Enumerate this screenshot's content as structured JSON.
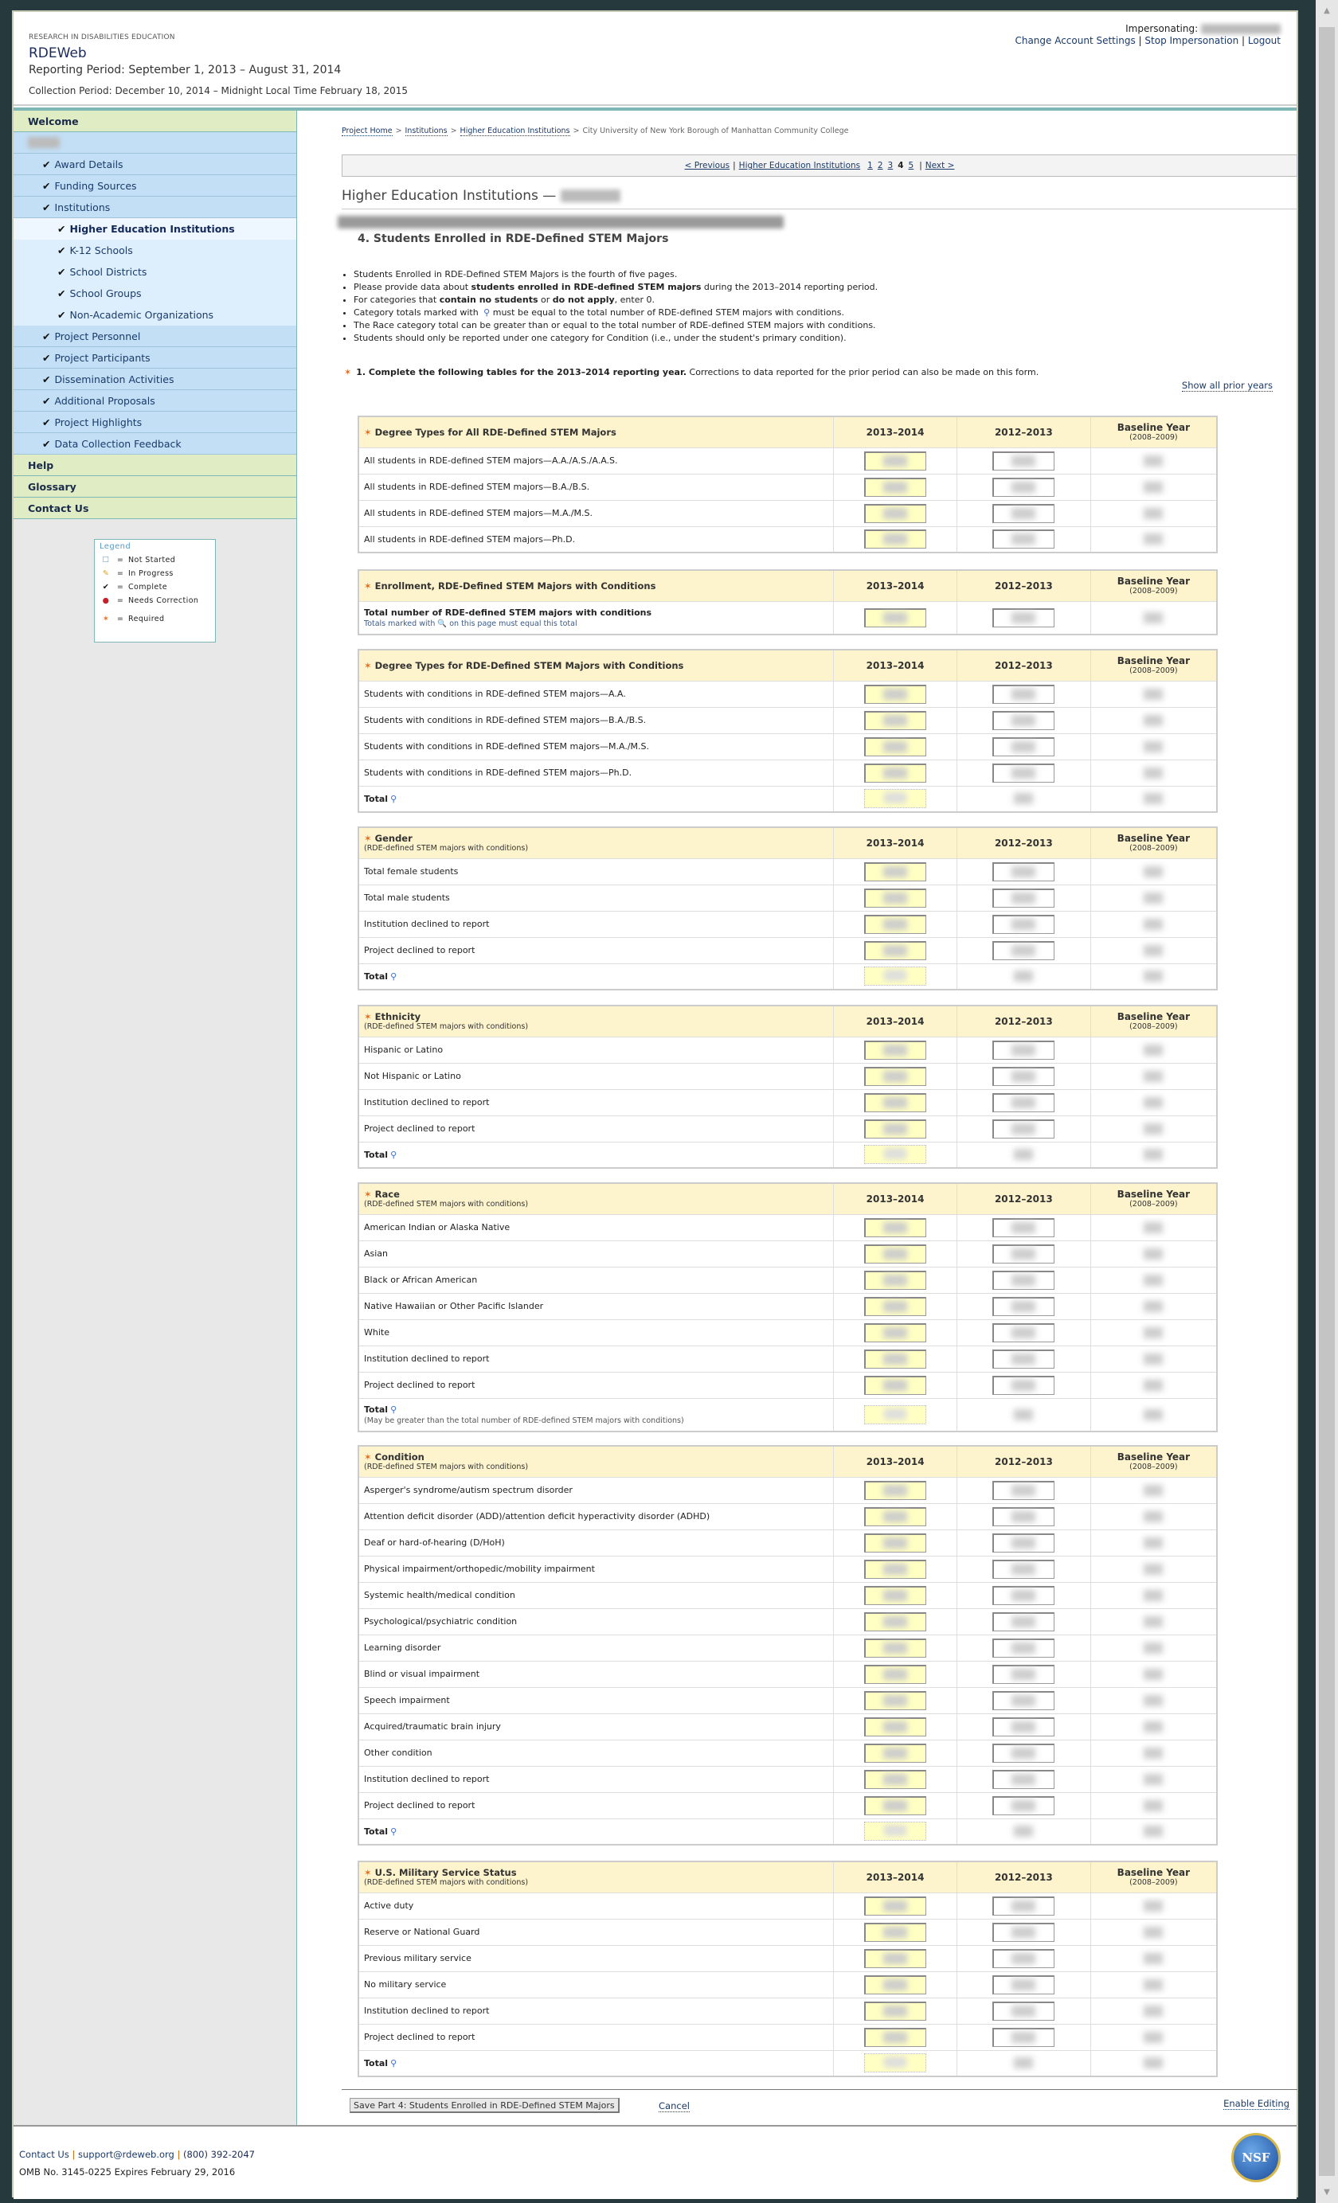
{
  "header": {
    "org": "RESEARCH IN DISABILITIES EDUCATION",
    "app_title": "RDEWeb",
    "reporting_period": "Reporting Period: September 1, 2013 – August 31, 2014",
    "collection_period": "Collection Period: December 10, 2014 – Midnight Local Time February 18, 2015",
    "impersonating_label": "Impersonating:",
    "links": {
      "account": "Change Account Settings",
      "stop": "Stop Impersonation",
      "logout": "Logout",
      "sep": "|"
    }
  },
  "sidebar": {
    "welcome": "Welcome",
    "items": [
      {
        "label": "Award Details",
        "level": 1
      },
      {
        "label": "Funding Sources",
        "level": 1
      },
      {
        "label": "Institutions",
        "level": 1
      },
      {
        "label": "Higher Education Institutions",
        "level": 2,
        "current": true
      },
      {
        "label": "K-12 Schools",
        "level": 2
      },
      {
        "label": "School Districts",
        "level": 2
      },
      {
        "label": "School Groups",
        "level": 2
      },
      {
        "label": "Non-Academic Organizations",
        "level": 2
      },
      {
        "label": "Project Personnel",
        "level": 1
      },
      {
        "label": "Project Participants",
        "level": 1
      },
      {
        "label": "Dissemination Activities",
        "level": 1
      },
      {
        "label": "Additional Proposals",
        "level": 1
      },
      {
        "label": "Project Highlights",
        "level": 1
      },
      {
        "label": "Data Collection Feedback",
        "level": 1
      }
    ],
    "bottom": [
      "Help",
      "Glossary",
      "Contact Us"
    ],
    "legend": {
      "title": "Legend",
      "eq": "=",
      "items": [
        {
          "icon": "not-started-icon",
          "label": "Not Started"
        },
        {
          "icon": "pencil-icon",
          "label": "In Progress"
        },
        {
          "icon": "checkmark-icon",
          "label": "Complete"
        },
        {
          "icon": "error-icon",
          "label": "Needs Correction"
        },
        {
          "icon": "required-star-icon",
          "label": "Required"
        }
      ]
    }
  },
  "breadcrumb": {
    "items": [
      "Project Home",
      "Institutions",
      "Higher Education Institutions"
    ],
    "current": "City University of New York Borough of Manhattan Community College",
    "sep": ">"
  },
  "pager": {
    "prev": "< Previous",
    "section": "Higher Education Institutions",
    "pages": [
      "1",
      "2",
      "3",
      "4",
      "5"
    ],
    "current_page": "4",
    "next": "Next >",
    "sep": "|"
  },
  "page": {
    "title": "Higher Education Institutions —",
    "section_title": "4. Students Enrolled in RDE-Defined STEM Majors",
    "bullets": [
      [
        "Students Enrolled in RDE-Defined STEM Majors is the fourth of five pages."
      ],
      [
        "Please provide data about ",
        "students enrolled in RDE-defined STEM majors",
        " during the 2013–2014 reporting period."
      ],
      [
        "For categories that ",
        "contain no students",
        " or ",
        "do not apply",
        ", enter 0."
      ],
      [
        "Category totals marked with ",
        "🔍",
        " must be equal to the total number of RDE-defined STEM majors with conditions."
      ],
      [
        "The Race category total can be greater than or equal to the total number of RDE-defined STEM majors with conditions."
      ],
      [
        "Students should only be reported under one category for Condition (i.e., under the student's primary condition)."
      ]
    ],
    "question_bold": "1. Complete the following tables for the 2013–2014 reporting year.",
    "question_rest": " Corrections to data reported for the prior period can also be made on this form.",
    "show_all": "Show all prior years"
  },
  "columns": {
    "y1": "2013–2014",
    "y2": "2012–2013",
    "base": "Baseline Year",
    "base_sub": "(2008–2009)"
  },
  "tables": [
    {
      "title": "Degree Types for All RDE-Defined STEM Majors",
      "rows": [
        {
          "label": "All students in RDE-defined STEM majors—A.A./A.S./A.A.S."
        },
        {
          "label": "All students in RDE-defined STEM majors—B.A./B.S."
        },
        {
          "label": "All students in RDE-defined STEM majors—M.A./M.S."
        },
        {
          "label": "All students in RDE-defined STEM majors—Ph.D."
        }
      ]
    },
    {
      "title": "Enrollment, RDE-Defined STEM Majors with Conditions",
      "rows": [
        {
          "label": "Total number of RDE-defined STEM majors with conditions",
          "bold": true,
          "note2": "Totals marked with 🔍 on this page must equal this total"
        }
      ]
    },
    {
      "title": "Degree Types for RDE-Defined STEM Majors with Conditions",
      "rows": [
        {
          "label": "Students with conditions in RDE-defined STEM majors—A.A."
        },
        {
          "label": "Students with conditions in RDE-defined STEM majors—B.A./B.S."
        },
        {
          "label": "Students with conditions in RDE-defined STEM majors—M.A./M.S."
        },
        {
          "label": "Students with conditions in RDE-defined STEM majors—Ph.D."
        },
        {
          "label": "Total",
          "total": true
        }
      ]
    },
    {
      "title": "Gender",
      "subtitle": "(RDE-defined STEM majors with conditions)",
      "rows": [
        {
          "label": "Total female students"
        },
        {
          "label": "Total male students"
        },
        {
          "label": "Institution declined to report"
        },
        {
          "label": "Project declined to report"
        },
        {
          "label": "Total",
          "total": true
        }
      ]
    },
    {
      "title": "Ethnicity",
      "subtitle": "(RDE-defined STEM majors with conditions)",
      "rows": [
        {
          "label": "Hispanic or Latino"
        },
        {
          "label": "Not Hispanic or Latino"
        },
        {
          "label": "Institution declined to report"
        },
        {
          "label": "Project declined to report"
        },
        {
          "label": "Total",
          "total": true
        }
      ]
    },
    {
      "title": "Race",
      "subtitle": "(RDE-defined STEM majors with conditions)",
      "rows": [
        {
          "label": "American Indian or Alaska Native"
        },
        {
          "label": "Asian"
        },
        {
          "label": "Black or African American"
        },
        {
          "label": "Native Hawaiian or Other Pacific Islander"
        },
        {
          "label": "White"
        },
        {
          "label": "Institution declined to report"
        },
        {
          "label": "Project declined to report"
        },
        {
          "label": "Total",
          "total": true,
          "note": "(May be greater than the total number of RDE-defined STEM majors with conditions)"
        }
      ]
    },
    {
      "title": "Condition",
      "subtitle": "(RDE-defined STEM majors with conditions)",
      "rows": [
        {
          "label": "Asperger's syndrome/autism spectrum disorder"
        },
        {
          "label": "Attention deficit disorder (ADD)/attention deficit hyperactivity disorder (ADHD)"
        },
        {
          "label": "Deaf or hard-of-hearing (D/HoH)"
        },
        {
          "label": "Physical impairment/orthopedic/mobility impairment"
        },
        {
          "label": "Systemic health/medical condition"
        },
        {
          "label": "Psychological/psychiatric condition"
        },
        {
          "label": "Learning disorder"
        },
        {
          "label": "Blind or visual impairment"
        },
        {
          "label": "Speech impairment"
        },
        {
          "label": "Acquired/traumatic brain injury"
        },
        {
          "label": "Other condition"
        },
        {
          "label": "Institution declined to report"
        },
        {
          "label": "Project declined to report"
        },
        {
          "label": "Total",
          "total": true
        }
      ]
    },
    {
      "title": "U.S. Military Service Status",
      "subtitle": "(RDE-defined STEM majors with conditions)",
      "rows": [
        {
          "label": "Active duty"
        },
        {
          "label": "Reserve or National Guard"
        },
        {
          "label": "Previous military service"
        },
        {
          "label": "No military service"
        },
        {
          "label": "Institution declined to report"
        },
        {
          "label": "Project declined to report"
        },
        {
          "label": "Total",
          "total": true
        }
      ]
    }
  ],
  "actions": {
    "save": "Save Part 4: Students Enrolled in RDE-Defined STEM Majors",
    "cancel": "Cancel",
    "enable": "Enable Editing"
  },
  "footer": {
    "contact": "Contact Us",
    "email": "support@rdeweb.org",
    "phone": "(800) 392-2047",
    "sep": "|",
    "omb": "OMB No. 3145-0225 Expires February 29, 2016",
    "logo_text": "NSF"
  },
  "colors": {
    "frame": "#263a3e",
    "sidebar_blue": "#c2dff5",
    "sidebar_green": "#e0edc4",
    "table_header": "#fdf3cc",
    "input_yellow": "#ffffc4",
    "required": "#e86a1c",
    "link": "#1a3a6a"
  }
}
